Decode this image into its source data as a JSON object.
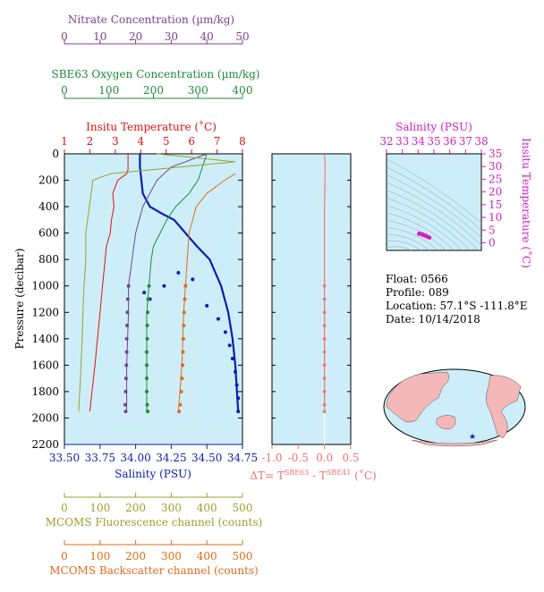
{
  "colors": {
    "nitrate": "#7b3f8f",
    "oxygen": "#1e8a3a",
    "temperature": "#e01010",
    "salinity": "#0a1fb0",
    "fluorescence": "#9aa02a",
    "backscatter": "#e06a1a",
    "delta_t": "#f07070",
    "ts_axis": "#d020c0",
    "plot_bg": "#cdeef8",
    "land": "#f4b8b8",
    "ocean": "#cdeef8"
  },
  "info": {
    "float": "Float:  0566",
    "profile": "Profile:  089",
    "location": "Location:  57.1°S  -111.8°E",
    "date": "Date:  10/14/2018"
  },
  "chart_data": [
    {
      "type": "line",
      "name": "profile-panel",
      "ylabel": "Pressure (decibar)",
      "ylim": [
        2200,
        0
      ],
      "yticks": [
        0,
        200,
        400,
        600,
        800,
        1000,
        1200,
        1400,
        1600,
        1800,
        2000,
        2200
      ],
      "axes": {
        "nitrate": {
          "label": "Nitrate Concentration (µm/kg)",
          "range": [
            0,
            50
          ],
          "ticks": [
            0,
            10,
            20,
            30,
            40,
            50
          ]
        },
        "oxygen": {
          "label": "SBE63 Oxygen Concentration (µm/kg)",
          "range": [
            0,
            400
          ],
          "ticks": [
            0,
            100,
            200,
            300,
            400
          ]
        },
        "temperature": {
          "label": "Insitu Temperature (˚C)",
          "range": [
            1,
            8
          ],
          "ticks": [
            1,
            2,
            3,
            4,
            5,
            6,
            7,
            8
          ]
        },
        "salinity": {
          "label": "Salinity (PSU)",
          "range": [
            33.5,
            34.75
          ],
          "ticks": [
            "33.50",
            "33.75",
            "34.00",
            "34.25",
            "34.50",
            "34.75"
          ]
        },
        "fluorescence": {
          "label": "MCOMS Fluorescence channel (counts)",
          "range": [
            0,
            500
          ],
          "ticks": [
            0,
            100,
            200,
            300,
            400,
            500
          ]
        },
        "backscatter": {
          "label": "MCOMS Backscatter channel (counts)",
          "range": [
            0,
            500
          ],
          "ticks": [
            0,
            100,
            200,
            300,
            400,
            500
          ]
        }
      },
      "series": {
        "temperature": {
          "x": [
            3.5,
            3.5,
            3.45,
            3.1,
            2.9,
            2.95,
            2.85,
            2.8,
            2.65,
            2.6,
            2.5,
            2.4,
            2.2,
            2.0
          ],
          "y": [
            0,
            120,
            150,
            200,
            300,
            400,
            500,
            600,
            700,
            800,
            1000,
            1200,
            1600,
            1950
          ]
        },
        "salinity": {
          "x": [
            34.03,
            34.03,
            34.04,
            34.05,
            34.1,
            34.18,
            34.27,
            34.35,
            34.43,
            34.52,
            34.6,
            34.65,
            34.68,
            34.7,
            34.72
          ],
          "y": [
            0,
            100,
            200,
            300,
            400,
            450,
            500,
            600,
            700,
            800,
            1000,
            1200,
            1400,
            1600,
            1950
          ]
        },
        "oxygen": {
          "x": [
            320,
            310,
            300,
            280,
            250,
            230,
            215,
            200,
            195,
            190,
            185,
            185,
            185,
            185
          ],
          "y": [
            0,
            100,
            200,
            300,
            400,
            500,
            600,
            700,
            800,
            1000,
            1200,
            1400,
            1600,
            1950
          ]
        },
        "nitrate": {
          "x": [
            40,
            30,
            26,
            24,
            22,
            21,
            20,
            19,
            18,
            18,
            17.5,
            17.5
          ],
          "y": [
            0,
            100,
            200,
            300,
            400,
            500,
            600,
            800,
            1000,
            1200,
            1600,
            1950
          ]
        },
        "fluorescence": {
          "x": [
            260,
            480,
            130,
            80,
            70,
            60,
            60,
            55,
            52,
            50,
            45,
            40
          ],
          "y": [
            0,
            60,
            150,
            200,
            400,
            600,
            800,
            1000,
            1200,
            1400,
            1700,
            1950
          ]
        },
        "backscatter": {
          "x": [
            480,
            450,
            400,
            370,
            360,
            350,
            345,
            340,
            335,
            330,
            320
          ],
          "y": [
            150,
            200,
            300,
            400,
            500,
            600,
            800,
            1000,
            1200,
            1600,
            1950
          ]
        }
      },
      "markers": {
        "salinity": [
          [
            34.06,
            1050
          ],
          [
            34.1,
            1100
          ],
          [
            34.2,
            1000
          ],
          [
            34.3,
            900
          ],
          [
            34.4,
            950
          ],
          [
            34.5,
            1150
          ],
          [
            34.58,
            1250
          ],
          [
            34.63,
            1350
          ],
          [
            34.66,
            1450
          ],
          [
            34.68,
            1550
          ],
          [
            34.7,
            1650
          ],
          [
            34.71,
            1750
          ],
          [
            34.72,
            1850
          ],
          [
            34.72,
            1950
          ]
        ],
        "oxygen": [
          [
            190,
            1000
          ],
          [
            188,
            1100
          ],
          [
            187,
            1200
          ],
          [
            186,
            1300
          ],
          [
            186,
            1400
          ],
          [
            185,
            1500
          ],
          [
            185,
            1600
          ],
          [
            185,
            1700
          ],
          [
            185,
            1800
          ],
          [
            186,
            1900
          ],
          [
            187,
            1950
          ]
        ],
        "nitrate": [
          [
            18,
            1000
          ],
          [
            17.8,
            1100
          ],
          [
            17.7,
            1200
          ],
          [
            17.6,
            1300
          ],
          [
            17.5,
            1400
          ],
          [
            17.5,
            1500
          ],
          [
            17.4,
            1600
          ],
          [
            17.3,
            1700
          ],
          [
            17.2,
            1800
          ],
          [
            17.1,
            1900
          ],
          [
            17.2,
            1950
          ]
        ],
        "backscatter": [
          [
            340,
            1000
          ],
          [
            338,
            1100
          ],
          [
            336,
            1200
          ],
          [
            335,
            1300
          ],
          [
            334,
            1400
          ],
          [
            333,
            1500
          ],
          [
            332,
            1600
          ],
          [
            330,
            1700
          ],
          [
            328,
            1800
          ],
          [
            325,
            1900
          ],
          [
            322,
            1950
          ]
        ]
      }
    },
    {
      "type": "line",
      "name": "delta-t-panel",
      "xlabel": "ΔT= T",
      "xlabel_sup1": "SBE63",
      "xlabel_mid": " - T",
      "xlabel_sup2": "SBE41",
      "xlabel_end": " (˚C)",
      "xlim": [
        -1.0,
        0.5
      ],
      "xticks": [
        "-1.0",
        "-0.5",
        "0.0",
        "0.5"
      ],
      "x": [
        0.0,
        0.01,
        0.0,
        0.0,
        0.0,
        0.0
      ],
      "y": [
        0,
        100,
        400,
        1000,
        1500,
        1950
      ],
      "markers_y": [
        1000,
        1100,
        1200,
        1300,
        1400,
        1500,
        1600,
        1700,
        1800,
        1900,
        1950
      ]
    },
    {
      "type": "scatter",
      "name": "ts-diagram",
      "xlabel": "Salinity (PSU)",
      "ylabel": "Insitu Temperature (˚C)",
      "xlim": [
        32,
        38
      ],
      "ylim": [
        -3,
        35
      ],
      "xticks": [
        32,
        33,
        34,
        35,
        36,
        37,
        38
      ],
      "yticks": [
        0,
        5,
        10,
        15,
        20,
        25,
        30,
        35
      ],
      "points": [
        [
          34.05,
          3.5
        ],
        [
          34.1,
          3.7
        ],
        [
          34.2,
          3.4
        ],
        [
          34.3,
          3.0
        ],
        [
          34.4,
          2.9
        ],
        [
          34.5,
          2.6
        ],
        [
          34.6,
          2.3
        ],
        [
          34.7,
          2.1
        ],
        [
          34.72,
          2.0
        ],
        [
          34.3,
          3.3
        ],
        [
          34.5,
          2.8
        ]
      ]
    }
  ]
}
